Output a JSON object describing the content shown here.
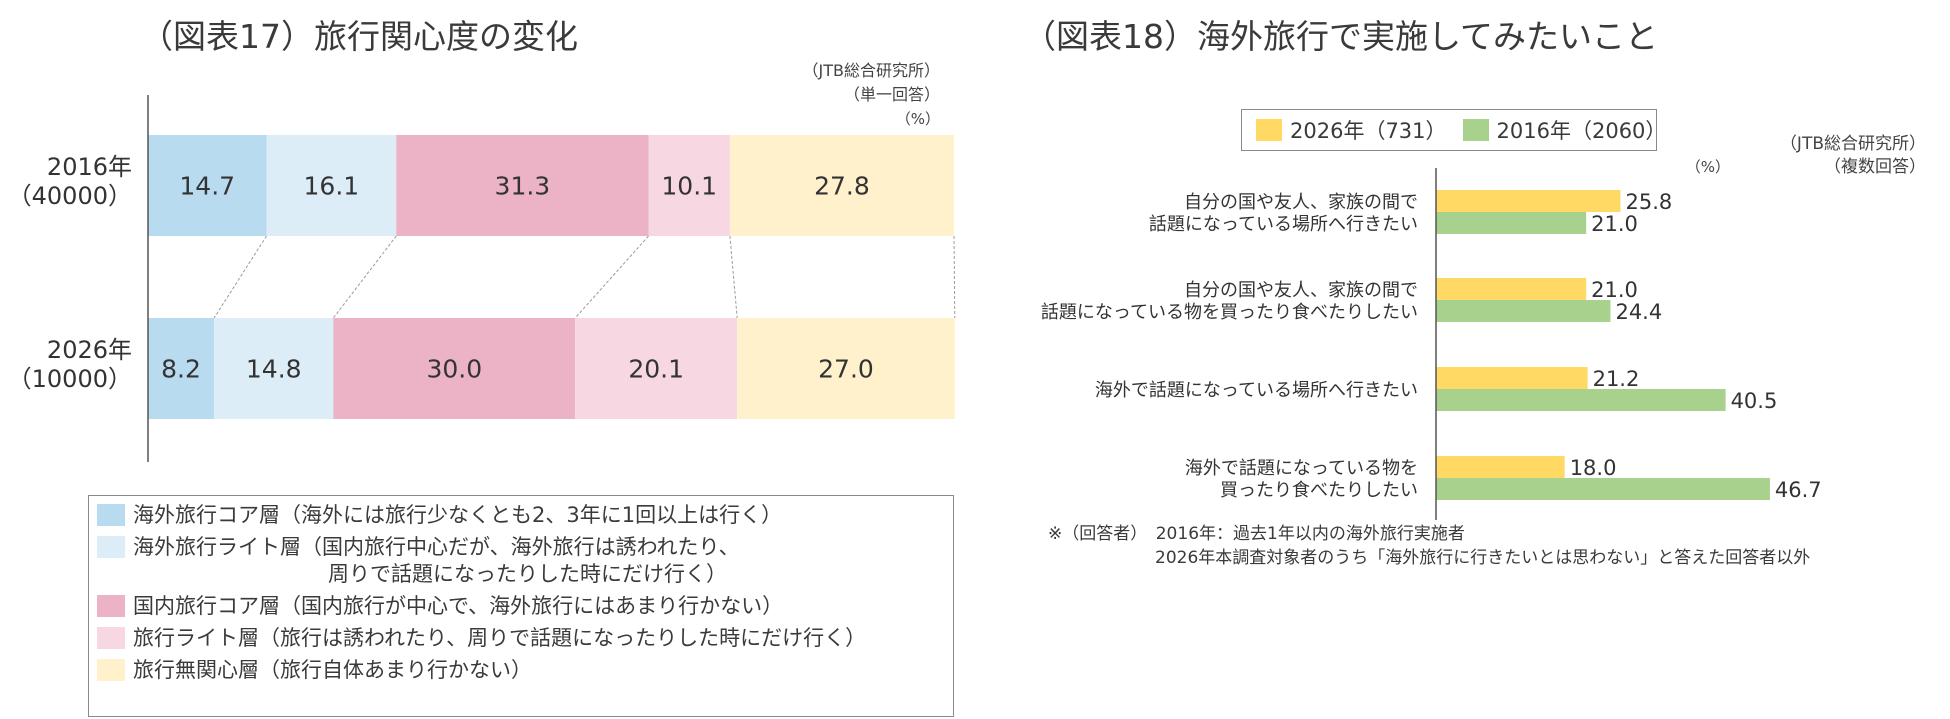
{
  "chart17": {
    "title": "（図表17）旅行関心度の変化",
    "source": "（JTB総合研究所）",
    "answer_type": "（単一回答）",
    "unit": "（%）",
    "legend": [
      {
        "text": "海外旅行コア層（海外には旅行少なくとも2、3年に1回以上は行く）",
        "text2": ""
      },
      {
        "text": "海外旅行ライト層（国内旅行中心だが、海外旅行は誘われたり、",
        "text2": "周りで話題になったりした時にだけ行く）"
      },
      {
        "text": "国内旅行コア層（国内旅行が中心で、海外旅行にはあまり行かない）",
        "text2": ""
      },
      {
        "text": "旅行ライト層（旅行は誘われたり、周りで話題になったりした時にだけ行く）",
        "text2": ""
      },
      {
        "text": "旅行無関心層（旅行自体あまり行かない）",
        "text2": ""
      }
    ]
  },
  "chart18": {
    "title": "（図表18）海外旅行で実施してみたいこと",
    "source": "（JTB総合研究所）",
    "answer_type": "（複数回答）",
    "unit": "（%）",
    "footnote_line1": "※（回答者）　2016年：過去1年以内の海外旅行実施者",
    "footnote_line2": "2026年本調査対象者のうち「海外旅行に行きたいとは思わない」と答えた回答者以外"
  },
  "colors": {
    "core_overseas": "#b9dbf0",
    "light_overseas": "#dcedf8",
    "core_domestic": "#ebb3c5",
    "light_travel": "#f7d8e2",
    "indifferent": "#fff1cc",
    "yellow": "#ffd964",
    "green": "#a9d18e",
    "axis": "#555555"
  },
  "chart_data": [
    {
      "type": "bar",
      "orientation": "horizontal",
      "stacked": true,
      "title": "（図表17）旅行関心度の変化",
      "categories": [
        "2016年（40000）",
        "2026年（10000）"
      ],
      "series": [
        {
          "name": "海外旅行コア層",
          "values": [
            14.7,
            8.2
          ]
        },
        {
          "name": "海外旅行ライト層",
          "values": [
            16.1,
            14.8
          ]
        },
        {
          "name": "国内旅行コア層",
          "values": [
            31.3,
            30.0
          ]
        },
        {
          "name": "旅行ライト層",
          "values": [
            10.1,
            20.1
          ]
        },
        {
          "name": "旅行無関心層",
          "values": [
            27.8,
            27.0
          ]
        }
      ],
      "xlim": [
        0,
        100
      ]
    },
    {
      "type": "bar",
      "orientation": "horizontal",
      "title": "（図表18）海外旅行で実施してみたいこと",
      "categories": [
        [
          "自分の国や友人、家族の間で",
          "話題になっている場所へ行きたい"
        ],
        [
          "自分の国や友人、家族の間で",
          "話題になっている物を買ったり食べたりしたい"
        ],
        [
          "海外で話題になっている場所へ行きたい"
        ],
        [
          "海外で話題になっている物を",
          "買ったり食べたりしたい"
        ]
      ],
      "series": [
        {
          "name": "2026年（731）",
          "values": [
            25.8,
            21.0,
            21.2,
            18.0
          ]
        },
        {
          "name": "2016年（2060）",
          "values": [
            21.0,
            24.4,
            40.5,
            46.7
          ]
        }
      ]
    }
  ]
}
